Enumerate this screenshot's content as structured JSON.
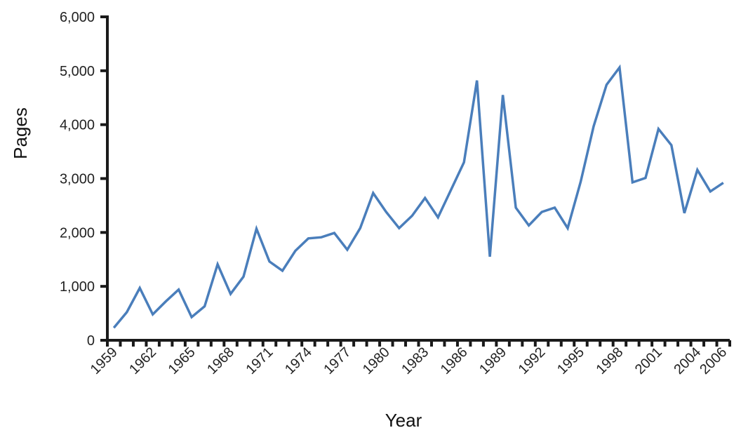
{
  "chart_data": {
    "type": "line",
    "title": "",
    "xlabel": "Year",
    "ylabel": "Pages",
    "ylim": [
      0,
      6000
    ],
    "yticks": [
      "0",
      "1,000",
      "2,000",
      "3,000",
      "4,000",
      "5,000",
      "6,000"
    ],
    "xtick_labels": [
      "1959",
      "1962",
      "1965",
      "1968",
      "1971",
      "1974",
      "1977",
      "1980",
      "1983",
      "1986",
      "1989",
      "1992",
      "1995",
      "1998",
      "2001",
      "2004",
      "2006"
    ],
    "color": "#4a7ebb",
    "x": [
      1959,
      1960,
      1961,
      1962,
      1963,
      1964,
      1965,
      1966,
      1967,
      1968,
      1969,
      1970,
      1971,
      1972,
      1973,
      1974,
      1975,
      1976,
      1977,
      1978,
      1979,
      1980,
      1981,
      1982,
      1983,
      1984,
      1985,
      1986,
      1987,
      1988,
      1989,
      1990,
      1991,
      1992,
      1993,
      1994,
      1995,
      1996,
      1997,
      1998,
      1999,
      2000,
      2001,
      2002,
      2003,
      2004,
      2005,
      2006
    ],
    "series": [
      {
        "name": "Pages",
        "values": [
          230,
          520,
          970,
          480,
          720,
          940,
          430,
          630,
          1410,
          860,
          1180,
          2070,
          1460,
          1290,
          1660,
          1890,
          1910,
          1990,
          1680,
          2080,
          2730,
          2380,
          2080,
          2310,
          2640,
          2280,
          2790,
          3300,
          4820,
          1550,
          4550,
          2460,
          2130,
          2380,
          2460,
          2080,
          2940,
          3970,
          4740,
          5060,
          2930,
          3010,
          3920,
          3620,
          2360,
          3160,
          2760,
          2920
        ]
      }
    ]
  }
}
